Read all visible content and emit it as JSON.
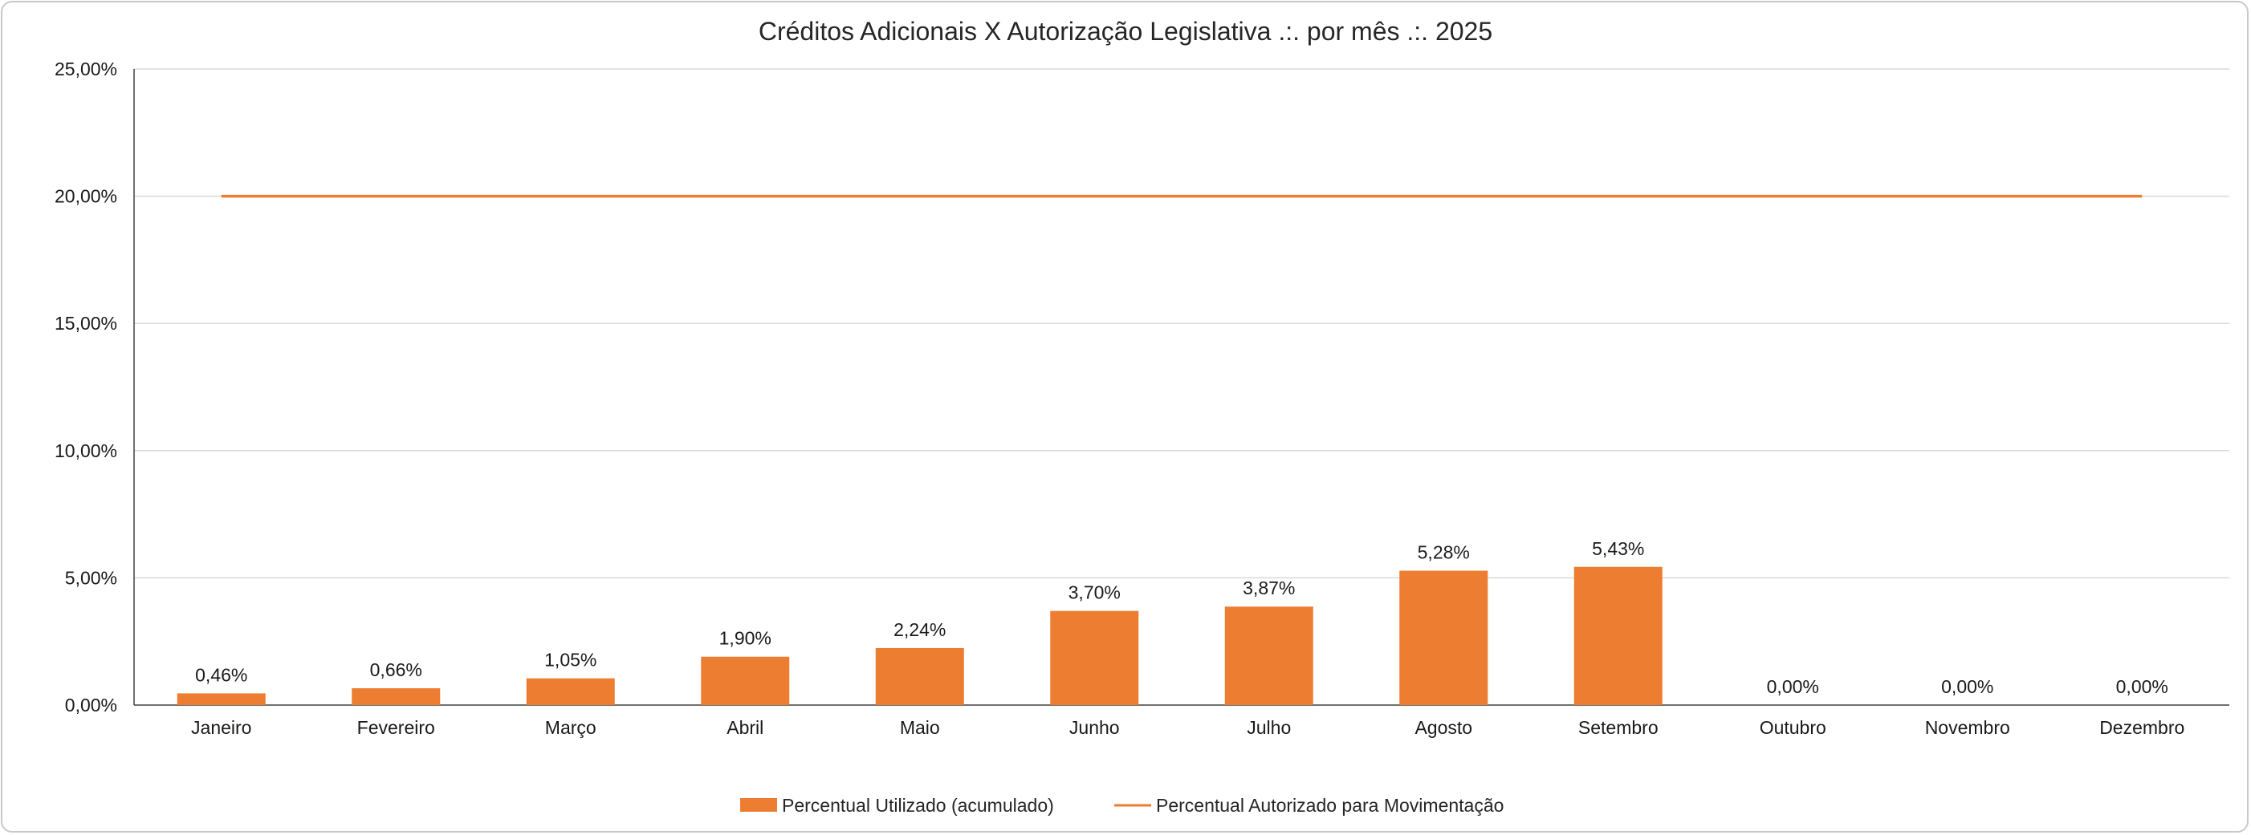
{
  "chart_data": {
    "type": "bar",
    "title": "Créditos Adicionais X Autorização Legislativa .:. por mês .:. 2025",
    "categories": [
      "Janeiro",
      "Fevereiro",
      "Março",
      "Abril",
      "Maio",
      "Junho",
      "Julho",
      "Agosto",
      "Setembro",
      "Outubro",
      "Novembro",
      "Dezembro"
    ],
    "series": [
      {
        "name": "Percentual Utilizado (acumulado)",
        "type": "bar",
        "color": "#ED7D31",
        "values": [
          0.46,
          0.66,
          1.05,
          1.9,
          2.24,
          3.7,
          3.87,
          5.28,
          5.43,
          0.0,
          0.0,
          0.0
        ],
        "labels": [
          "0,46%",
          "0,66%",
          "1,05%",
          "1,90%",
          "2,24%",
          "3,70%",
          "3,87%",
          "5,28%",
          "5,43%",
          "0,00%",
          "0,00%",
          "0,00%"
        ]
      },
      {
        "name": "Percentual Autorizado para Movimentação",
        "type": "line",
        "color": "#ED7D31",
        "values": [
          20,
          20,
          20,
          20,
          20,
          20,
          20,
          20,
          20,
          20,
          20,
          20
        ]
      }
    ],
    "ylim": [
      0,
      25
    ],
    "yticks": [
      0,
      5,
      10,
      15,
      20,
      25
    ],
    "ytick_labels": [
      "0,00%",
      "5,00%",
      "10,00%",
      "15,00%",
      "20,00%",
      "25,00%"
    ],
    "grid": true,
    "legend_position": "bottom"
  }
}
